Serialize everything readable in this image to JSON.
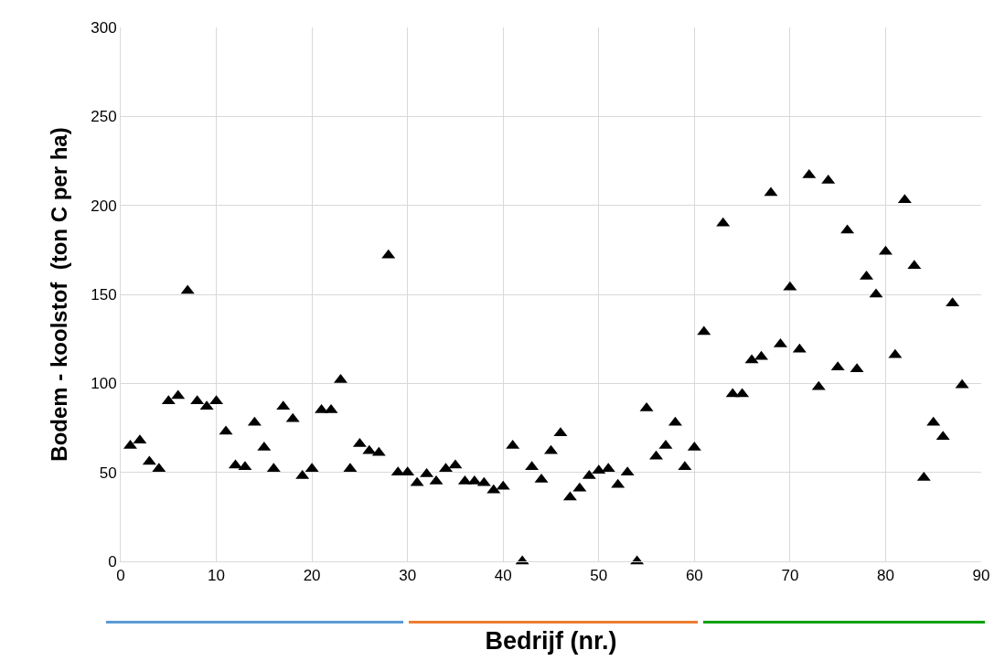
{
  "chart_data": {
    "type": "scatter",
    "xlabel": "Bedrijf (nr.)",
    "ylabel": "Bodem - koolstof  (ton C per ha)",
    "x": [
      1,
      2,
      3,
      4,
      5,
      6,
      7,
      8,
      9,
      10,
      11,
      12,
      13,
      14,
      15,
      16,
      17,
      18,
      19,
      20,
      21,
      22,
      23,
      24,
      25,
      26,
      27,
      28,
      29,
      30,
      31,
      32,
      33,
      34,
      35,
      36,
      37,
      38,
      39,
      40,
      41,
      42,
      43,
      44,
      45,
      46,
      47,
      48,
      49,
      50,
      51,
      52,
      53,
      54,
      55,
      56,
      57,
      58,
      59,
      60,
      61,
      63,
      64,
      65,
      66,
      67,
      68,
      69,
      70,
      71,
      72,
      73,
      74,
      75,
      76,
      77,
      78,
      79,
      80,
      81,
      82,
      83,
      84,
      85,
      86,
      87,
      88
    ],
    "series": [
      {
        "color": "#000000",
        "values": [
          65,
          68,
          56,
          52,
          90,
          93,
          152,
          90,
          87,
          90,
          73,
          54,
          53,
          78,
          64,
          52,
          87,
          80,
          48,
          52,
          85,
          85,
          102,
          52,
          66,
          62,
          61,
          172,
          50,
          50,
          44,
          49,
          45,
          52,
          54,
          45,
          45,
          44,
          40,
          42,
          65,
          0,
          53,
          46,
          62,
          72,
          36,
          41,
          48,
          51,
          52,
          43,
          50,
          0,
          86,
          59,
          65,
          78,
          53,
          64,
          129,
          190,
          94,
          94,
          113,
          115,
          207,
          122,
          154,
          119,
          217,
          98,
          214,
          109,
          186,
          108,
          160,
          150,
          174,
          116,
          203,
          166,
          47,
          78,
          70,
          145,
          99
        ]
      }
    ],
    "xlim": [
      0,
      90
    ],
    "xticks": [
      0,
      10,
      20,
      30,
      40,
      50,
      60,
      70,
      80,
      90
    ],
    "ylim": [
      0,
      300
    ],
    "yticks": [
      0,
      50,
      100,
      150,
      200,
      250,
      300
    ],
    "grid": true,
    "marker": "triangle"
  }
}
